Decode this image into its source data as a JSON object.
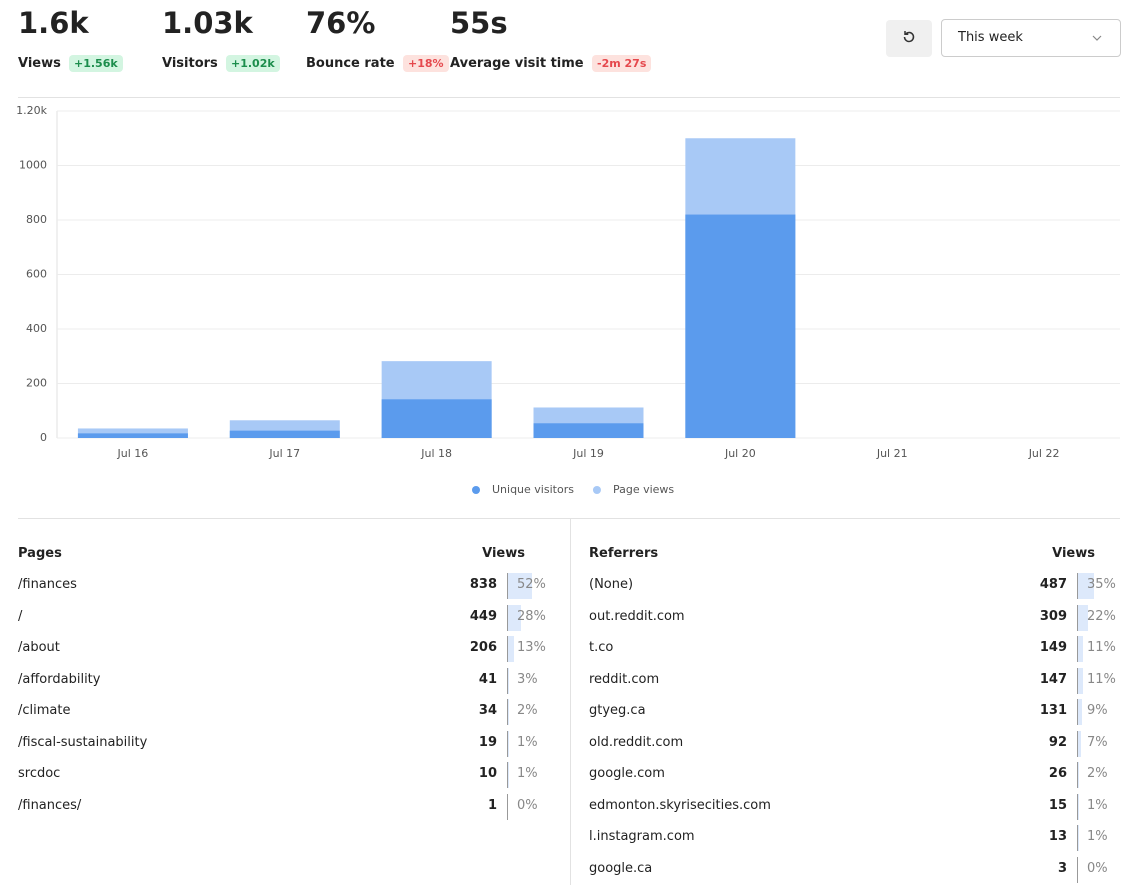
{
  "metrics": [
    {
      "value": "1.6k",
      "label": "Views",
      "change": "+1.56k",
      "trend": "up"
    },
    {
      "value": "1.03k",
      "label": "Visitors",
      "change": "+1.02k",
      "trend": "up"
    },
    {
      "value": "76%",
      "label": "Bounce rate",
      "change": "+18%",
      "trend": "down"
    },
    {
      "value": "55s",
      "label": "Average visit time",
      "change": "-2m 27s",
      "trend": "down"
    }
  ],
  "date_range": "This week",
  "chart_data": {
    "type": "bar",
    "categories": [
      "Jul 16",
      "Jul 17",
      "Jul 18",
      "Jul 19",
      "Jul 20",
      "Jul 21",
      "Jul 22"
    ],
    "series": [
      {
        "name": "Unique visitors",
        "color": "#5b9bed",
        "values": [
          17,
          27,
          142,
          54,
          820,
          0,
          0
        ]
      },
      {
        "name": "Page views",
        "color": "#a8c9f6",
        "values": [
          35,
          65,
          282,
          112,
          1100,
          0,
          0
        ]
      }
    ],
    "ylim": [
      0,
      1200
    ],
    "yticks": [
      0,
      200,
      400,
      600,
      800,
      1000,
      {
        "value": 1200,
        "label": "1.20k"
      }
    ],
    "grid": true
  },
  "tables": [
    {
      "title": "Pages",
      "column": "Views",
      "rows": [
        {
          "name": "/finances",
          "views": 838,
          "share": 52,
          "share_label": "52%"
        },
        {
          "name": "/",
          "views": 449,
          "share": 28,
          "share_label": "28%"
        },
        {
          "name": "/about",
          "views": 206,
          "share": 13,
          "share_label": "13%"
        },
        {
          "name": "/affordability",
          "views": 41,
          "share": 3,
          "share_label": "3%"
        },
        {
          "name": "/climate",
          "views": 34,
          "share": 2,
          "share_label": "2%"
        },
        {
          "name": "/fiscal-sustainability",
          "views": 19,
          "share": 1,
          "share_label": "1%"
        },
        {
          "name": "srcdoc",
          "views": 10,
          "share": 1,
          "share_label": "1%"
        },
        {
          "name": "/finances/",
          "views": 1,
          "share": 0,
          "share_label": "0%"
        }
      ]
    },
    {
      "title": "Referrers",
      "column": "Views",
      "rows": [
        {
          "name": "(None)",
          "views": 487,
          "share": 35,
          "share_label": "35%"
        },
        {
          "name": "out.reddit.com",
          "views": 309,
          "share": 22,
          "share_label": "22%"
        },
        {
          "name": "t.co",
          "views": 149,
          "share": 11,
          "share_label": "11%"
        },
        {
          "name": "reddit.com",
          "views": 147,
          "share": 11,
          "share_label": "11%"
        },
        {
          "name": "gtyeg.ca",
          "views": 131,
          "share": 9,
          "share_label": "9%"
        },
        {
          "name": "old.reddit.com",
          "views": 92,
          "share": 7,
          "share_label": "7%"
        },
        {
          "name": "google.com",
          "views": 26,
          "share": 2,
          "share_label": "2%"
        },
        {
          "name": "edmonton.skyrisecities.com",
          "views": 15,
          "share": 1,
          "share_label": "1%"
        },
        {
          "name": "l.instagram.com",
          "views": 13,
          "share": 1,
          "share_label": "1%"
        },
        {
          "name": "google.ca",
          "views": 3,
          "share": 0,
          "share_label": "0%"
        }
      ]
    }
  ]
}
